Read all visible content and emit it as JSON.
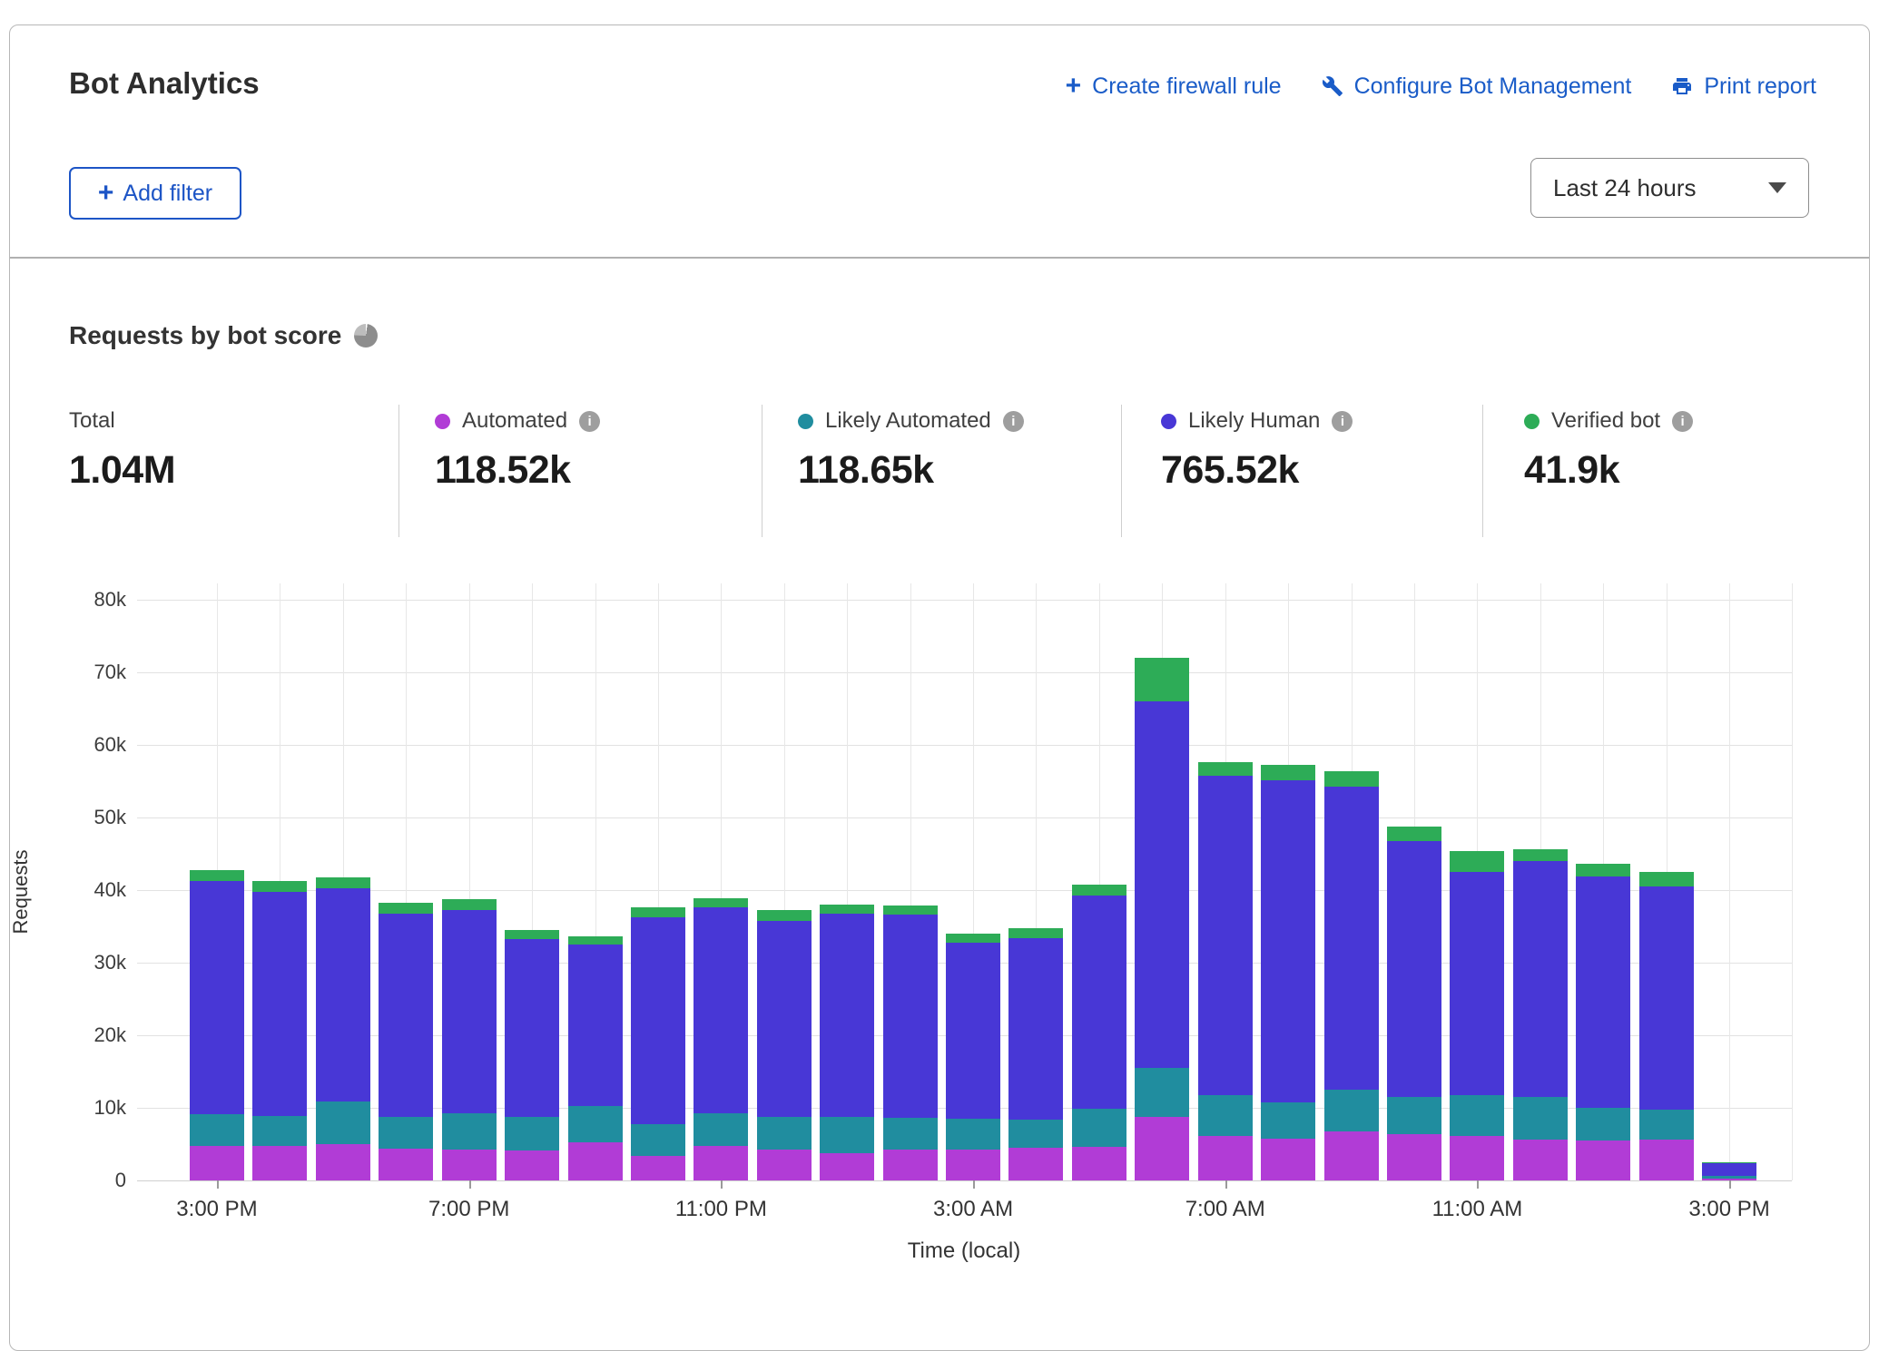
{
  "header": {
    "title": "Bot Analytics",
    "actions": [
      {
        "icon": "plus-icon",
        "label": "Create firewall rule"
      },
      {
        "icon": "wrench-icon",
        "label": "Configure Bot Management"
      },
      {
        "icon": "printer-icon",
        "label": "Print report"
      }
    ],
    "add_filter_label": "Add filter",
    "time_range_value": "Last 24 hours"
  },
  "section": {
    "title": "Requests by bot score"
  },
  "stats": [
    {
      "label": "Total",
      "value": "1.04M"
    },
    {
      "label": "Automated",
      "value": "118.52k",
      "color": "#b13cd6"
    },
    {
      "label": "Likely Automated",
      "value": "118.65k",
      "color": "#208d9f"
    },
    {
      "label": "Likely Human",
      "value": "765.52k",
      "color": "#4837d6"
    },
    {
      "label": "Verified bot",
      "value": "41.9k",
      "color": "#2dac57"
    }
  ],
  "chart_data": {
    "type": "bar",
    "stacked": true,
    "title": "Requests by bot score",
    "xlabel": "Time (local)",
    "ylabel": "Requests",
    "ylim": [
      0,
      80000
    ],
    "grid": true,
    "ytick_labels": [
      "0",
      "10k",
      "20k",
      "30k",
      "40k",
      "50k",
      "60k",
      "70k",
      "80k"
    ],
    "x_ticks": [
      "3:00 PM",
      "7:00 PM",
      "11:00 PM",
      "3:00 AM",
      "7:00 AM",
      "11:00 AM",
      "3:00 PM"
    ],
    "x_tick_every": 4,
    "bar_count": 25,
    "series": [
      {
        "name": "Automated",
        "color": "#b13cd6",
        "values": [
          4700,
          4700,
          5000,
          4400,
          4300,
          4100,
          5200,
          3400,
          4700,
          4200,
          3800,
          4300,
          4300,
          4500,
          4600,
          8700,
          6100,
          5800,
          6800,
          6400,
          6100,
          5600,
          5500,
          5600,
          300
        ]
      },
      {
        "name": "Likely Automated",
        "color": "#208d9f",
        "values": [
          4400,
          4200,
          5900,
          4400,
          5000,
          4700,
          5100,
          4300,
          4550,
          4550,
          5000,
          4300,
          4200,
          3900,
          5300,
          6800,
          5700,
          4900,
          5700,
          5100,
          5600,
          5900,
          4500,
          4100,
          300
        ]
      },
      {
        "name": "Likely Human",
        "color": "#4837d6",
        "values": [
          32200,
          30800,
          29300,
          27900,
          27900,
          24500,
          22200,
          28500,
          28350,
          26950,
          28000,
          28000,
          24200,
          25000,
          29300,
          50500,
          44000,
          44400,
          41800,
          35300,
          30800,
          32500,
          31900,
          30800,
          1800
        ]
      },
      {
        "name": "Verified bot",
        "color": "#2dac57",
        "values": [
          1400,
          1500,
          1500,
          1500,
          1500,
          1200,
          1100,
          1400,
          1300,
          1500,
          1200,
          1300,
          1300,
          1300,
          1500,
          6000,
          1800,
          2100,
          2100,
          2000,
          2900,
          1600,
          1700,
          2000,
          100
        ]
      }
    ],
    "totals_legend": {
      "total": "1.04M",
      "automated": "118.52k",
      "likely_automated": "118.65k",
      "likely_human": "765.52k",
      "verified_bot": "41.9k"
    }
  }
}
